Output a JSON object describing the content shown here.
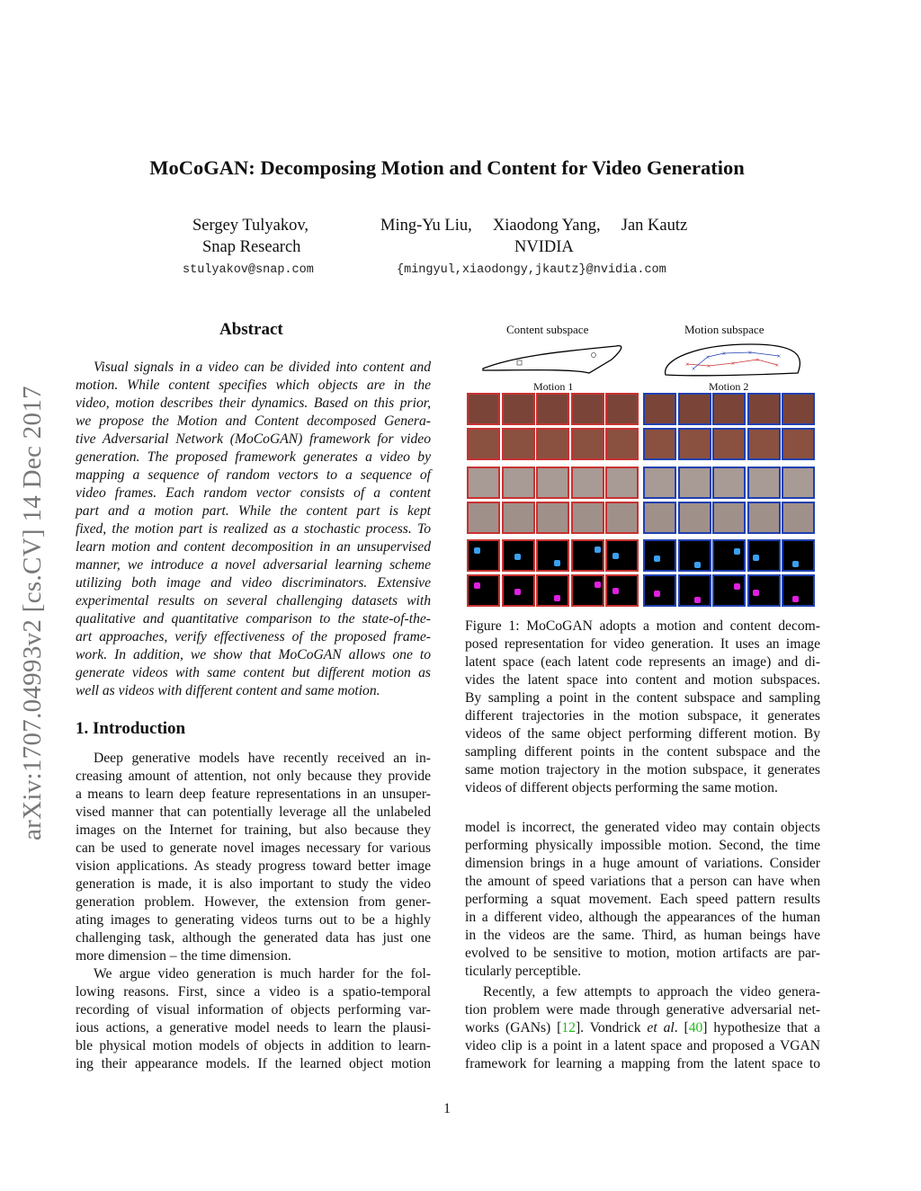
{
  "side_label": "arXiv:1707.04993v2  [cs.CV]  14 Dec 2017",
  "title": "MoCoGAN: Decomposing Motion and Content for Video Generation",
  "authors": {
    "a1_name": "Sergey Tulyakov,",
    "a1_affil": "Snap Research",
    "a1_email": "stulyakov@snap.com",
    "a2_names": "Ming-Yu Liu,     Xiaodong Yang,     Jan Kautz",
    "a2_affil": "NVIDIA",
    "a2_email": "{mingyul,xiaodongy,jkautz}@nvidia.com"
  },
  "abstract": {
    "heading": "Abstract",
    "lines": [
      "Visual signals in a video can be divided into content and",
      "motion.  While content specifies which objects are in the",
      "video, motion describes their dynamics. Based on this prior,",
      "we propose the Motion and Content decomposed Genera-",
      "tive Adversarial Network (MoCoGAN) framework for video",
      "generation. The proposed framework generates a video by",
      "mapping a sequence of random vectors to a sequence of",
      "video frames.  Each random vector consists of a content",
      "part and a motion part.  While the content part is kept",
      "fixed, the motion part is realized as a stochastic process. To",
      "learn motion and content decomposition in an unsupervised",
      "manner, we introduce a novel adversarial learning scheme",
      "utilizing both image and video discriminators.  Extensive",
      "experimental results on several challenging datasets with",
      "qualitative and quantitative comparison to the state-of-the-",
      "art approaches, verify effectiveness of the proposed frame-",
      "work.  In addition, we show that MoCoGAN allows one to",
      "generate videos with same content but different motion as",
      "well as videos with different content and same motion."
    ]
  },
  "intro": {
    "heading": "1. Introduction",
    "para1": [
      "Deep generative models have recently received an in-",
      "creasing amount of attention, not only because they provide",
      "a means to learn deep feature representations in an unsuper-",
      "vised manner that can potentially leverage all the unlabeled",
      "images on the Internet for training, but also because they",
      "can be used to generate novel images necessary for various",
      "vision applications. As steady progress toward better image",
      "generation is made, it is also important to study the video",
      "generation problem.  However, the extension from gener-",
      "ating images to generating videos turns out to be a highly",
      "challenging task, although the generated data has just one",
      "more dimension – the time dimension."
    ],
    "para2": [
      "We argue video generation is much harder for the fol-",
      "lowing reasons.  First, since a video is a spatio-temporal",
      "recording of visual information of objects performing var-",
      "ious actions, a generative model needs to learn the plausi-",
      "ble physical motion models of objects in addition to learn-",
      "ing their appearance models.  If the learned object motion"
    ],
    "para3": [
      "model is incorrect, the generated video may contain objects",
      "performing physically impossible motion. Second, the time",
      "dimension brings in a huge amount of variations.  Consider",
      "the amount of speed variations that a person can have when",
      "performing a squat movement.  Each speed pattern results",
      "in a different video, although the appearances of the human",
      "in the videos are the same.  Third, as human beings have",
      "evolved to be sensitive to motion, motion artifacts are par-",
      "ticularly perceptible."
    ],
    "para4": [
      "Recently, a few attempts to approach the video genera-",
      "tion problem were made through generative adversarial net-",
      [
        {
          "t": "works (GANs) ["
        },
        {
          "t": "12",
          "s": "cite"
        },
        {
          "t": "]. Vondrick "
        },
        {
          "t": "et al",
          "s": "em"
        },
        {
          "t": ". ["
        },
        {
          "t": "40",
          "s": "cite"
        },
        {
          "t": "] hypothesize that a"
        }
      ],
      "video clip is a point in a latent space and proposed a VGAN",
      "framework for learning a mapping from the latent space to"
    ]
  },
  "figure": {
    "content_label": "Content subspace",
    "motion_label": "Motion subspace",
    "motion1_label": "Motion 1",
    "motion2_label": "Motion 2",
    "motion1_color": "#c83232",
    "motion2_color": "#2040b0",
    "caption": [
      "Figure 1:  MoCoGAN adopts a motion and content decom-",
      "posed representation for video generation. It uses an image",
      "latent space (each latent code represents an image) and di-",
      "vides the latent space into content and motion subspaces.",
      "By sampling a point in the content subspace and sampling",
      "different trajectories in the motion subspace, it generates",
      "videos of the same object performing different motion. By",
      "sampling different points in the content subspace and the",
      "same motion trajectory in the motion subspace, it generates",
      "videos of different objects performing the same motion."
    ]
  },
  "page_number": "1"
}
